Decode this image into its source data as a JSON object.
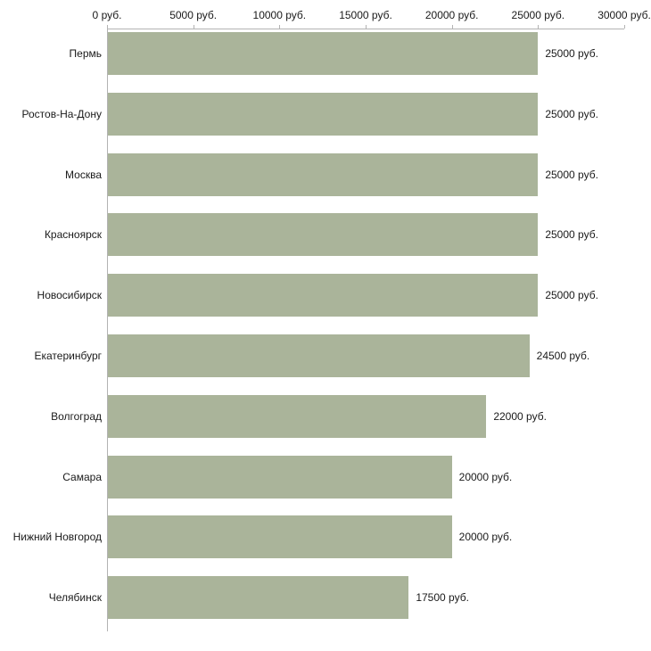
{
  "chart_data": {
    "type": "bar",
    "orientation": "horizontal",
    "title": "",
    "xlabel": "",
    "ylabel": "",
    "categories": [
      "Пермь",
      "Ростов-На-Дону",
      "Москва",
      "Красноярск",
      "Новосибирск",
      "Екатеринбург",
      "Волгоград",
      "Самара",
      "Нижний Новгород",
      "Челябинск"
    ],
    "values": [
      25000,
      25000,
      25000,
      25000,
      25000,
      24500,
      22000,
      20000,
      20000,
      17500
    ],
    "value_labels": [
      "25000 руб.",
      "25000 руб.",
      "25000 руб.",
      "25000 руб.",
      "25000 руб.",
      "24500 руб.",
      "22000 руб.",
      "20000 руб.",
      "20000 руб.",
      "17500 руб."
    ],
    "x_ticks": [
      0,
      5000,
      10000,
      15000,
      20000,
      25000,
      30000
    ],
    "x_tick_labels": [
      "0 руб.",
      "5000 руб.",
      "10000 руб.",
      "15000 руб.",
      "20000 руб.",
      "25000 руб.",
      "30000 руб."
    ],
    "xlim": [
      0,
      30000
    ],
    "grid": false,
    "legend": false,
    "bar_color": "#aab49a",
    "axis_color": "#b3b3b3"
  }
}
